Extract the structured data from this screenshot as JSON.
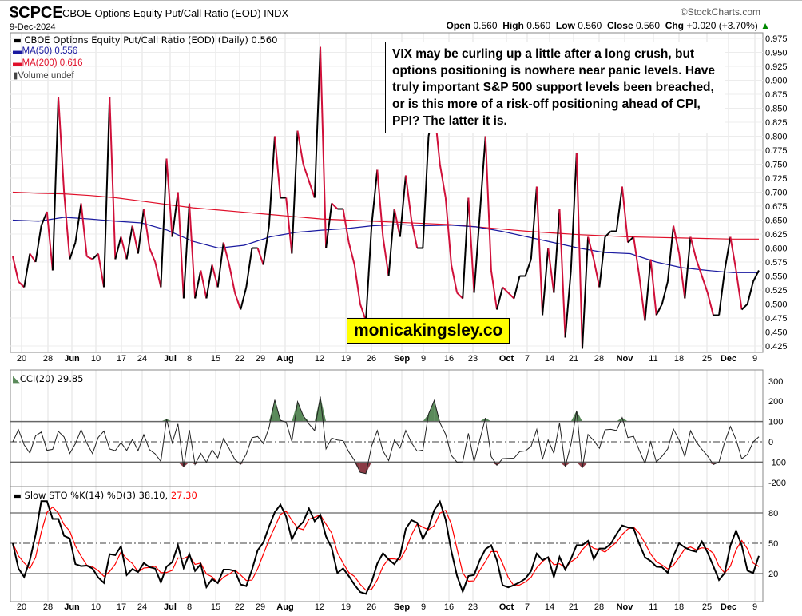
{
  "header": {
    "symbol": "$CPCE",
    "name": "CBOE Options Equity Put/Call Ratio (EOD)",
    "exchange": "INDX",
    "date": "9-Dec-2024",
    "brand": "©StockCharts.com",
    "open_label": "Open",
    "open": "0.560",
    "high_label": "High",
    "high": "0.560",
    "low_label": "Low",
    "low": "0.560",
    "close_label": "Close",
    "close": "0.560",
    "chg_label": "Chg",
    "chg": "+0.020 (+3.70%)"
  },
  "legend": {
    "price": "CBOE Options Equity Put/Call Ratio (EOD) (Daily) 0.560",
    "ma50": "MA(50) 0.556",
    "ma200": "MA(200) 0.616",
    "volume": "Volume undef",
    "cci": "CCI(20) 29.85",
    "sto": "Slow STO %K(14) %D(3) 38.10,",
    "sto_d": "27.30"
  },
  "note": "VIX may be curling up a little after a long crush, but options positioning is nowhere near panic levels. Have truly important S&P 500 support levels been breached, or is this more of a risk-off positioning ahead of CPI, PPI? The latter it is.",
  "watermark": "monicakingsley.co",
  "colors": {
    "up": "#000000",
    "down": "#d0103a",
    "ma50": "#1a1aa0",
    "ma200": "#e0102a",
    "cci_pos": "#5a8a5a",
    "cci_neg": "#8a3a44",
    "sto_d": "#ff0000"
  },
  "chart_data": [
    {
      "type": "line",
      "title": "CBOE Options Equity Put/Call Ratio (EOD)",
      "ylim": [
        0.41,
        0.98
      ],
      "y_ticks": [
        "0.975",
        "0.950",
        "0.925",
        "0.900",
        "0.875",
        "0.850",
        "0.825",
        "0.800",
        "0.775",
        "0.750",
        "0.725",
        "0.700",
        "0.675",
        "0.650",
        "0.625",
        "0.600",
        "0.575",
        "0.550",
        "0.525",
        "0.500",
        "0.475",
        "0.450",
        "0.425"
      ],
      "x_ticks": [
        "20",
        "28",
        "Jun",
        "10",
        "17",
        "24",
        "Jul",
        "8",
        "15",
        "22",
        "29",
        "Aug",
        "12",
        "19",
        "26",
        "Sep",
        "9",
        "16",
        "23",
        "Oct",
        "7",
        "14",
        "21",
        "28",
        "Nov",
        "11",
        "18",
        "25",
        "Dec",
        "9"
      ],
      "series": [
        {
          "name": "CBOE Options Equity Put/Call Ratio (EOD) (Daily)",
          "values": [
            0.585,
            0.54,
            0.53,
            0.59,
            0.575,
            0.64,
            0.665,
            0.56,
            0.87,
            0.7,
            0.58,
            0.61,
            0.68,
            0.585,
            0.58,
            0.59,
            0.53,
            0.87,
            0.58,
            0.62,
            0.58,
            0.64,
            0.59,
            0.67,
            0.6,
            0.575,
            0.53,
            0.76,
            0.62,
            0.7,
            0.51,
            0.68,
            0.51,
            0.56,
            0.51,
            0.57,
            0.53,
            0.61,
            0.57,
            0.52,
            0.49,
            0.53,
            0.6,
            0.6,
            0.57,
            0.64,
            0.8,
            0.69,
            0.69,
            0.59,
            0.81,
            0.75,
            0.72,
            0.69,
            0.96,
            0.6,
            0.68,
            0.67,
            0.67,
            0.61,
            0.57,
            0.5,
            0.47,
            0.64,
            0.74,
            0.62,
            0.55,
            0.67,
            0.62,
            0.73,
            0.65,
            0.6,
            0.6,
            0.8,
            0.85,
            0.75,
            0.69,
            0.57,
            0.52,
            0.51,
            0.69,
            0.52,
            0.66,
            0.8,
            0.56,
            0.49,
            0.53,
            0.52,
            0.51,
            0.55,
            0.55,
            0.58,
            0.71,
            0.48,
            0.6,
            0.52,
            0.67,
            0.44,
            0.56,
            0.77,
            0.42,
            0.62,
            0.58,
            0.53,
            0.62,
            0.63,
            0.63,
            0.71,
            0.61,
            0.62,
            0.55,
            0.47,
            0.58,
            0.48,
            0.5,
            0.54,
            0.64,
            0.59,
            0.51,
            0.62,
            0.58,
            0.55,
            0.52,
            0.48,
            0.48,
            0.56,
            0.62,
            0.56,
            0.49,
            0.5,
            0.54,
            0.56
          ]
        },
        {
          "name": "MA(50)",
          "values": [
            0.65,
            0.648,
            0.655,
            0.652,
            0.648,
            0.645,
            0.632,
            0.612,
            0.6,
            0.605,
            0.62,
            0.628,
            0.632,
            0.635,
            0.64,
            0.642,
            0.64,
            0.641,
            0.638,
            0.63,
            0.62,
            0.61,
            0.6,
            0.592,
            0.59,
            0.575,
            0.565,
            0.56,
            0.556,
            0.556
          ]
        },
        {
          "name": "MA(200)",
          "values": [
            0.7,
            0.698,
            0.697,
            0.694,
            0.69,
            0.684,
            0.678,
            0.672,
            0.668,
            0.664,
            0.66,
            0.656,
            0.652,
            0.65,
            0.648,
            0.646,
            0.644,
            0.642,
            0.638,
            0.634,
            0.63,
            0.627,
            0.624,
            0.622,
            0.62,
            0.619,
            0.618,
            0.617,
            0.616,
            0.616
          ]
        }
      ]
    },
    {
      "type": "line",
      "title": "CCI(20)",
      "ylim": [
        -230,
        340
      ],
      "y_ticks": [
        "300",
        "200",
        "100",
        "0",
        "-100",
        "-200"
      ],
      "levels": [
        100,
        0,
        -100
      ]
    },
    {
      "type": "line",
      "title": "Slow STO %K(14) %D(3)",
      "ylim": [
        -5,
        110
      ],
      "y_ticks": [
        "80",
        "50",
        "20"
      ],
      "levels": [
        80,
        50,
        20
      ]
    }
  ]
}
